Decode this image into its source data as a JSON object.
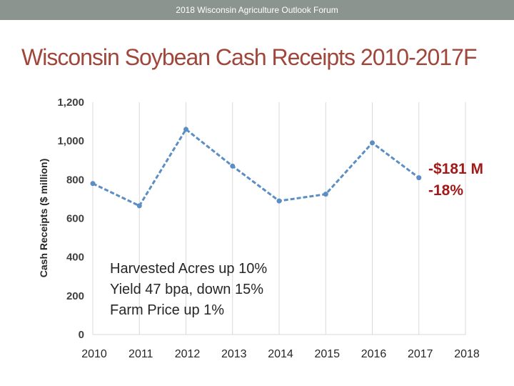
{
  "header": {
    "forum_title": "2018 Wisconsin Agriculture Outlook Forum"
  },
  "slide": {
    "title": "Wisconsin Soybean Cash Receipts 2010-2017F"
  },
  "annotations": {
    "lines": [
      "Harvested Acres up 10%",
      "Yield 47 bpa, down 15%",
      "Farm Price up 1%"
    ]
  },
  "callout": {
    "amount": "-$181 M",
    "percent": "-18%"
  },
  "colors": {
    "line": "#5b8ec4",
    "callout": "#a01a1a",
    "title": "#a0473c",
    "topbar": "#8c9490"
  },
  "chart_data": {
    "type": "line",
    "title": "",
    "xlabel": "",
    "ylabel": "Cash Receipts ($ million)",
    "x": [
      2010,
      2011,
      2012,
      2013,
      2014,
      2015,
      2016,
      2017
    ],
    "x_ticks": [
      "2010",
      "2011",
      "2012",
      "2013",
      "2014",
      "2015",
      "2016",
      "2017",
      "2018"
    ],
    "y_ticks": [
      "0",
      "200",
      "400",
      "600",
      "800",
      "1,000",
      "1,200"
    ],
    "xlim": [
      2010,
      2018
    ],
    "ylim": [
      0,
      1200
    ],
    "grid": "vertical",
    "series": [
      {
        "name": "Soybean Cash Receipts",
        "values": [
          780,
          665,
          1060,
          870,
          690,
          725,
          990,
          810
        ],
        "style": "dashed"
      }
    ]
  }
}
